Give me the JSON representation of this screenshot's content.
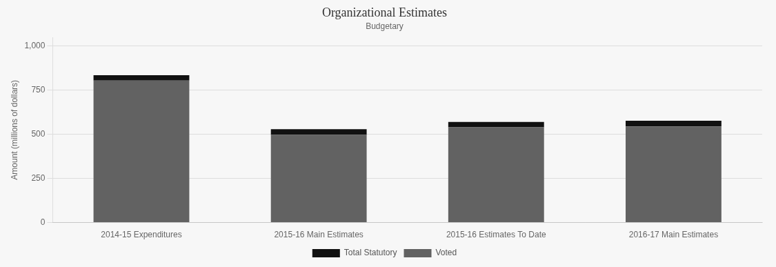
{
  "chart_data": {
    "type": "bar",
    "title": "Organizational Estimates",
    "subtitle": "Budgetary",
    "categories": [
      "2014-15 Expenditures",
      "2015-16 Main Estimates",
      "2015-16 Estimates To Date",
      "2016-17 Main Estimates"
    ],
    "series": [
      {
        "name": "Voted",
        "color": "#626262",
        "values": [
          805,
          497,
          540,
          545
        ]
      },
      {
        "name": "Total Statutory",
        "color": "#111111",
        "values": [
          30,
          32,
          30,
          32
        ]
      }
    ],
    "stacked": true,
    "ylabel": "Amount (millions of dollars)",
    "ylim": [
      0,
      1050
    ],
    "yticks": [
      0,
      250,
      500,
      750,
      {
        "value": 1000,
        "label": "1,000"
      }
    ],
    "grid": true,
    "legend": "bottom"
  }
}
